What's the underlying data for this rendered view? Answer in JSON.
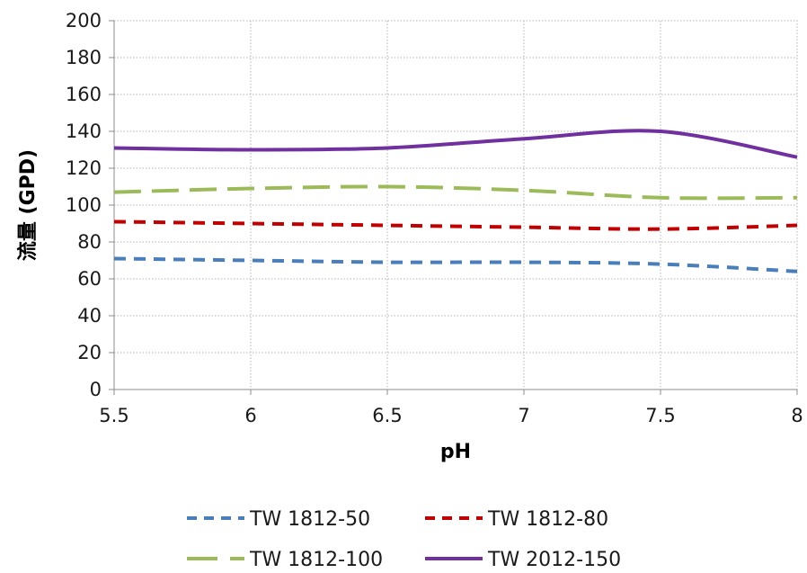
{
  "chart_data": {
    "type": "line",
    "xlabel": "pH",
    "ylabel": "流量 (GPD)",
    "xlim": [
      5.5,
      8
    ],
    "ylim": [
      0,
      200
    ],
    "x_ticks": [
      "5.5",
      "6",
      "6.5",
      "7",
      "7.5",
      "8"
    ],
    "y_ticks": [
      "0",
      "20",
      "40",
      "60",
      "80",
      "100",
      "120",
      "140",
      "160",
      "180",
      "200"
    ],
    "grid": "dotted vertical and horizontal",
    "legend_position": "bottom",
    "series": [
      {
        "name": "TW 1812-50",
        "color": "#4a7ebb",
        "style": "dashed",
        "x": [
          5.5,
          6,
          6.5,
          7,
          7.5,
          8
        ],
        "values": [
          71,
          70,
          69,
          69,
          68,
          64
        ]
      },
      {
        "name": "TW 1812-80",
        "color": "#c00000",
        "style": "dashed",
        "x": [
          5.5,
          6,
          6.5,
          7,
          7.5,
          8
        ],
        "values": [
          91,
          90,
          89,
          88,
          87,
          89
        ]
      },
      {
        "name": "TW 1812-100",
        "color": "#9bbb59",
        "style": "long-dashed",
        "x": [
          5.5,
          6,
          6.5,
          7,
          7.5,
          8
        ],
        "values": [
          107,
          109,
          110,
          108,
          104,
          104
        ]
      },
      {
        "name": "TW 2012-150",
        "color": "#7030a0",
        "style": "solid",
        "x": [
          5.5,
          6,
          6.5,
          7,
          7.5,
          8
        ],
        "values": [
          131,
          130,
          131,
          136,
          140,
          126
        ]
      }
    ]
  }
}
